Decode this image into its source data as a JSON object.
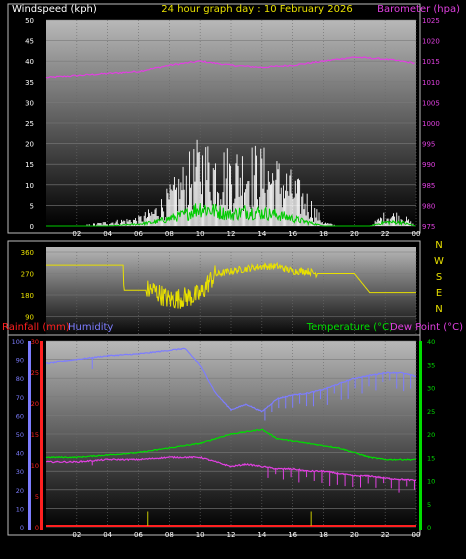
{
  "colors": {
    "wind_gust": "#ffffff",
    "wind_avg": "#00cc00",
    "barometer": "#e040e0",
    "direction": "#e8e000",
    "humidity": "#7d7dff",
    "temperature": "#00dd00",
    "dew_point": "#e040e0",
    "rainfall": "#ff2020",
    "rain_rate": "#c8c800"
  },
  "header": {
    "wind_label": "Windspeed (kph)",
    "title": "24 hour graph day : 10 February 2026",
    "baro_label": "Barometer (hpa)"
  },
  "lower_header": {
    "rain_label": "Rainfall (mm)",
    "humidity_label": "Humidity",
    "temp_label": "Temperature (°C)",
    "dew_label": "Dew Point (°C)"
  },
  "chart_data": [
    {
      "type": "line",
      "title": "24 hour graph day : 10 February 2026",
      "ylabel": "Windspeed (kph)",
      "y2label": "Barometer (hpa)",
      "ylim": [
        0,
        50
      ],
      "y2lim": [
        975,
        1025
      ],
      "yticks": [
        "0",
        "5",
        "10",
        "15",
        "20",
        "25",
        "30",
        "35",
        "40",
        "45",
        "50"
      ],
      "y2ticks": [
        "975",
        "980",
        "985",
        "990",
        "995",
        "1000",
        "1005",
        "1010",
        "1015",
        "1020",
        "1025"
      ],
      "xticks": [
        "02",
        "04",
        "06",
        "08",
        "10",
        "12",
        "14",
        "16",
        "18",
        "20",
        "22",
        "00"
      ],
      "series": [
        {
          "name": "Barometer (hpa)",
          "x": [
            0,
            2,
            4,
            6,
            8,
            10,
            12,
            14,
            16,
            18,
            20,
            22,
            24
          ],
          "values": [
            1011,
            1011.5,
            1012,
            1012.5,
            1014,
            1015,
            1014,
            1013.5,
            1014,
            1015,
            1016,
            1015.5,
            1014.5
          ]
        },
        {
          "name": "",
          "x": [
            0,
            2,
            4,
            6,
            7,
            8,
            9,
            10,
            11,
            12,
            13,
            14,
            15,
            16,
            17,
            18,
            19,
            20,
            21,
            22,
            23,
            24
          ],
          "values": [
            0,
            0,
            1,
            2,
            4,
            8,
            13,
            18,
            17,
            16,
            17,
            16,
            14,
            11,
            7,
            1,
            0,
            0,
            0,
            3,
            3,
            0
          ]
        },
        {
          "name": "",
          "x": [
            0,
            2,
            4,
            6,
            7,
            8,
            9,
            10,
            11,
            12,
            13,
            14,
            15,
            16,
            17,
            18,
            19,
            20,
            21,
            22,
            23,
            24
          ],
          "values": [
            0,
            0,
            0,
            0.5,
            1,
            2,
            3,
            5,
            4,
            3,
            4,
            3.5,
            3,
            2,
            1,
            0,
            0,
            0,
            0,
            1,
            1,
            0
          ]
        }
      ]
    },
    {
      "type": "line",
      "ylabel": "",
      "y2label": "",
      "ylim": [
        0,
        360
      ],
      "yticks": [
        "0",
        "90",
        "180",
        "270",
        "360"
      ],
      "compass": [
        "N",
        "W",
        "S",
        "E",
        "N"
      ],
      "xticks": [
        "02",
        "04",
        "06",
        "08",
        "10",
        "12",
        "14",
        "16",
        "18",
        "20",
        "22",
        "00"
      ],
      "series": [
        {
          "name": "",
          "x": [
            0,
            2,
            4,
            5.0,
            5.05,
            6,
            7,
            8,
            9,
            10,
            10.5,
            11,
            12,
            13,
            14,
            15,
            16,
            17,
            17.5,
            18,
            19,
            20,
            21,
            22,
            24
          ],
          "values": [
            305,
            305,
            305,
            305,
            200,
            200,
            200,
            160,
            170,
            180,
            230,
            265,
            280,
            290,
            300,
            300,
            280,
            280,
            270,
            270,
            270,
            270,
            190,
            190,
            190
          ]
        }
      ]
    },
    {
      "type": "line",
      "ylabel": "Rainfall (mm)",
      "y2label": "Temperature (°C)",
      "ylim": [
        0,
        100
      ],
      "rain_ylim": [
        0,
        30
      ],
      "y2lim": [
        0,
        40
      ],
      "humidity_ticks": [
        "0",
        "10",
        "20",
        "30",
        "40",
        "50",
        "60",
        "70",
        "80",
        "90",
        "100"
      ],
      "rain_ticks": [
        "0",
        "5",
        "10",
        "15",
        "20",
        "25",
        "30"
      ],
      "temp_ticks": [
        "0",
        "5",
        "10",
        "15",
        "20",
        "25",
        "30",
        "35",
        "40"
      ],
      "xticks": [
        "02",
        "04",
        "06",
        "08",
        "10",
        "12",
        "14",
        "16",
        "18",
        "20",
        "22",
        "00"
      ],
      "series": [
        {
          "name": "Humidity",
          "x": [
            0,
            2,
            4,
            6,
            8,
            9,
            10,
            11,
            12,
            13,
            14,
            15,
            16,
            17,
            18,
            20,
            22,
            23,
            24
          ],
          "values": [
            88,
            90,
            92,
            93,
            95,
            96,
            87,
            72,
            63,
            66,
            62,
            69,
            71,
            72,
            74,
            80,
            83,
            83,
            81
          ]
        },
        {
          "name": "Temperature (°C)",
          "x": [
            0,
            2,
            4,
            6,
            8,
            10,
            11,
            12,
            13,
            14,
            15,
            16,
            17,
            18,
            19,
            20,
            21,
            22,
            24
          ],
          "values": [
            15,
            15,
            15.5,
            16,
            17,
            18,
            19,
            20,
            20.5,
            21,
            19,
            18.5,
            18,
            17.5,
            17,
            16,
            15,
            14.5,
            14.5
          ]
        },
        {
          "name": "Dew Point (°C)",
          "x": [
            0,
            2,
            4,
            6,
            8,
            10,
            11,
            12,
            13,
            14,
            15,
            16,
            17,
            18,
            19,
            20,
            21,
            22,
            24
          ],
          "values": [
            14,
            14,
            14.5,
            14.5,
            15,
            15,
            14,
            13,
            13.5,
            13,
            12.5,
            12.5,
            12,
            12,
            11.5,
            11,
            11,
            10.5,
            10
          ]
        },
        {
          "name": "Rainfall (mm)",
          "x": [
            0,
            24
          ],
          "values": [
            0,
            0
          ]
        }
      ]
    }
  ]
}
